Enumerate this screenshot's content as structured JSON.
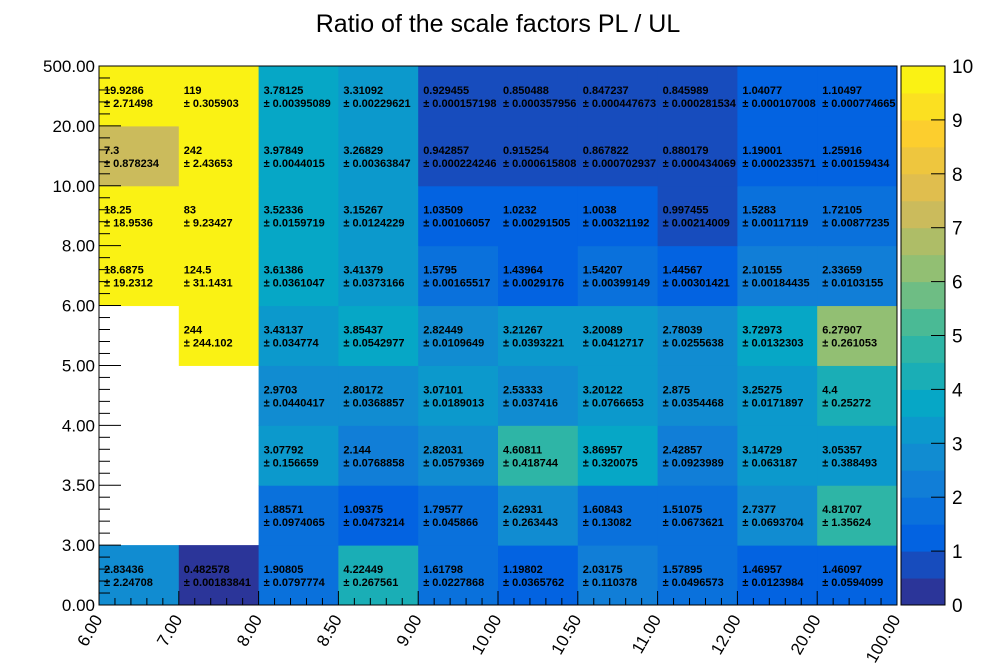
{
  "chart_data": {
    "type": "heatmap",
    "title": "Ratio of the scale factors PL / UL",
    "x_bin_edges": [
      "6.00",
      "7.00",
      "8.00",
      "8.50",
      "9.00",
      "10.00",
      "10.50",
      "11.00",
      "12.00",
      "20.00",
      "100.00"
    ],
    "y_bin_edges": [
      "0.00",
      "3.00",
      "3.50",
      "4.00",
      "5.00",
      "6.00",
      "8.00",
      "10.00",
      "20.00",
      "500.00"
    ],
    "z_range": [
      0,
      10
    ],
    "colorbar_ticks": [
      "0",
      "1",
      "2",
      "3",
      "4",
      "5",
      "6",
      "7",
      "8",
      "9",
      "10"
    ],
    "rows": [
      {
        "values": [
          2.83436,
          0.482578,
          1.90805,
          4.22449,
          1.61798,
          1.19802,
          2.03175,
          1.57895,
          1.46957,
          1.46097
        ],
        "value_labels": [
          "2.83436",
          "0.482578",
          "1.90805",
          "4.22449",
          "1.61798",
          "1.19802",
          "2.03175",
          "1.57895",
          "1.46957",
          "1.46097"
        ],
        "error_labels": [
          "± 2.24708",
          "± 0.00183841",
          "± 0.0797774",
          "± 0.267561",
          "± 0.0227868",
          "± 0.0365762",
          "± 0.110378",
          "± 0.0496573",
          "± 0.0123984",
          "± 0.0594099"
        ]
      },
      {
        "values": [
          null,
          null,
          1.88571,
          1.09375,
          1.79577,
          2.62931,
          1.60843,
          1.51075,
          2.7377,
          4.81707
        ],
        "value_labels": [
          null,
          null,
          "1.88571",
          "1.09375",
          "1.79577",
          "2.62931",
          "1.60843",
          "1.51075",
          "2.7377",
          "4.81707"
        ],
        "error_labels": [
          null,
          null,
          "± 0.0974065",
          "± 0.0473214",
          "± 0.045866",
          "± 0.263443",
          "± 0.13082",
          "± 0.0673621",
          "± 0.0693704",
          "± 1.35624"
        ]
      },
      {
        "values": [
          null,
          null,
          3.07792,
          2.144,
          2.82031,
          4.60811,
          3.86957,
          2.42857,
          3.14729,
          3.05357
        ],
        "value_labels": [
          null,
          null,
          "3.07792",
          "2.144",
          "2.82031",
          "4.60811",
          "3.86957",
          "2.42857",
          "3.14729",
          "3.05357"
        ],
        "error_labels": [
          null,
          null,
          "± 0.156659",
          "± 0.0768858",
          "± 0.0579369",
          "± 0.418744",
          "± 0.320075",
          "± 0.0923989",
          "± 0.063187",
          "± 0.388493"
        ]
      },
      {
        "values": [
          null,
          null,
          2.9703,
          2.80172,
          3.07101,
          2.53333,
          3.20122,
          2.875,
          3.25275,
          4.4
        ],
        "value_labels": [
          null,
          null,
          "2.9703",
          "2.80172",
          "3.07101",
          "2.53333",
          "3.20122",
          "2.875",
          "3.25275",
          "4.4"
        ],
        "error_labels": [
          null,
          null,
          "± 0.0440417",
          "± 0.0368857",
          "± 0.0189013",
          "± 0.037416",
          "± 0.0766653",
          "± 0.0354468",
          "± 0.0171897",
          "± 0.25272"
        ]
      },
      {
        "values": [
          null,
          244,
          3.43137,
          3.85437,
          2.82449,
          3.21267,
          3.20089,
          2.78039,
          3.72973,
          6.27907
        ],
        "value_labels": [
          null,
          "244",
          "3.43137",
          "3.85437",
          "2.82449",
          "3.21267",
          "3.20089",
          "2.78039",
          "3.72973",
          "6.27907"
        ],
        "error_labels": [
          null,
          "± 244.102",
          "± 0.034774",
          "± 0.0542977",
          "± 0.0109649",
          "± 0.0393221",
          "± 0.0412717",
          "± 0.0255638",
          "± 0.0132303",
          "± 0.261053"
        ]
      },
      {
        "values": [
          18.6875,
          124.5,
          3.61386,
          3.41379,
          1.5795,
          1.43964,
          1.54207,
          1.44567,
          2.10155,
          2.33659
        ],
        "value_labels": [
          "18.6875",
          "124.5",
          "3.61386",
          "3.41379",
          "1.5795",
          "1.43964",
          "1.54207",
          "1.44567",
          "2.10155",
          "2.33659"
        ],
        "error_labels": [
          "± 19.2312",
          "± 31.1431",
          "± 0.0361047",
          "± 0.0373166",
          "± 0.00165517",
          "± 0.0029176",
          "± 0.00399149",
          "± 0.00301421",
          "± 0.00184435",
          "± 0.0103155"
        ]
      },
      {
        "values": [
          18.25,
          83,
          3.52336,
          3.15267,
          1.03509,
          1.0232,
          1.0038,
          0.997455,
          1.5283,
          1.72105
        ],
        "value_labels": [
          "18.25",
          "83",
          "3.52336",
          "3.15267",
          "1.03509",
          "1.0232",
          "1.0038",
          "0.997455",
          "1.5283",
          "1.72105"
        ],
        "error_labels": [
          "± 18.9536",
          "± 9.23427",
          "± 0.0159719",
          "± 0.0124229",
          "± 0.00106057",
          "± 0.00291505",
          "± 0.00321192",
          "± 0.00214009",
          "± 0.00117119",
          "± 0.00877235"
        ]
      },
      {
        "values": [
          7.3,
          242,
          3.97849,
          3.26829,
          0.942857,
          0.915254,
          0.867822,
          0.880179,
          1.19001,
          1.25916
        ],
        "value_labels": [
          "7.3",
          "242",
          "3.97849",
          "3.26829",
          "0.942857",
          "0.915254",
          "0.867822",
          "0.880179",
          "1.19001",
          "1.25916"
        ],
        "error_labels": [
          "± 0.878234",
          "± 2.43653",
          "± 0.0044015",
          "± 0.00363847",
          "± 0.000224246",
          "± 0.000615808",
          "± 0.000702937",
          "± 0.000434069",
          "± 0.000233571",
          "± 0.00159434"
        ]
      },
      {
        "values": [
          19.9286,
          119,
          3.78125,
          3.31092,
          0.929455,
          0.850488,
          0.847237,
          0.845989,
          1.04077,
          1.10497
        ],
        "value_labels": [
          "19.9286",
          "119",
          "3.78125",
          "3.31092",
          "0.929455",
          "0.850488",
          "0.847237",
          "0.845989",
          "1.04077",
          "1.10497"
        ],
        "error_labels": [
          "± 2.71498",
          "± 0.305903",
          "± 0.00395089",
          "± 0.00229621",
          "± 0.000157198",
          "± 0.000357956",
          "± 0.000447673",
          "± 0.000281534",
          "± 0.000107008",
          "± 0.000774665"
        ]
      }
    ]
  }
}
